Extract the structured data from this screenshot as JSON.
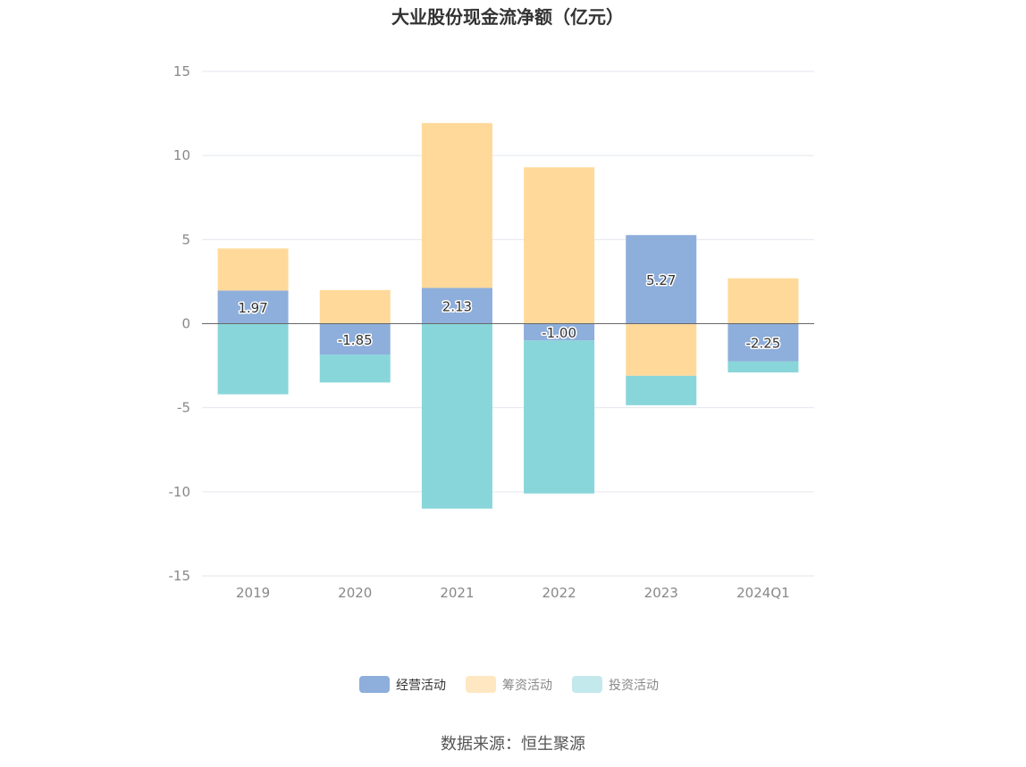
{
  "chart_data": {
    "type": "bar",
    "stacked": true,
    "title": "大业股份现金流净额（亿元）",
    "categories": [
      "2019",
      "2020",
      "2021",
      "2022",
      "2023",
      "2024Q1"
    ],
    "ylim": [
      -15,
      15
    ],
    "yticks": [
      15,
      10,
      5,
      0,
      -5,
      -10,
      -15
    ],
    "grid": true,
    "legend_position": "bottom",
    "series": [
      {
        "name": "经营活动",
        "color": "#8EAEDB",
        "values": [
          1.97,
          -1.85,
          2.13,
          -1.0,
          5.27,
          -2.25
        ],
        "labels": [
          "1.97",
          "-1.85",
          "2.13",
          "-1.00",
          "5.27",
          "-2.25"
        ]
      },
      {
        "name": "筹资活动",
        "color": "#FFD99A",
        "values": [
          2.5,
          2.0,
          9.8,
          9.3,
          -3.1,
          2.7
        ]
      },
      {
        "name": "投资活动",
        "color": "#89D6DA",
        "values": [
          -4.2,
          -1.65,
          -11.0,
          -9.1,
          -1.75,
          -0.65
        ]
      }
    ],
    "legend_colors": [
      "#8EAEDB",
      "#FFE7C2",
      "#C4E9EC"
    ]
  },
  "source": "数据来源：恒生聚源"
}
